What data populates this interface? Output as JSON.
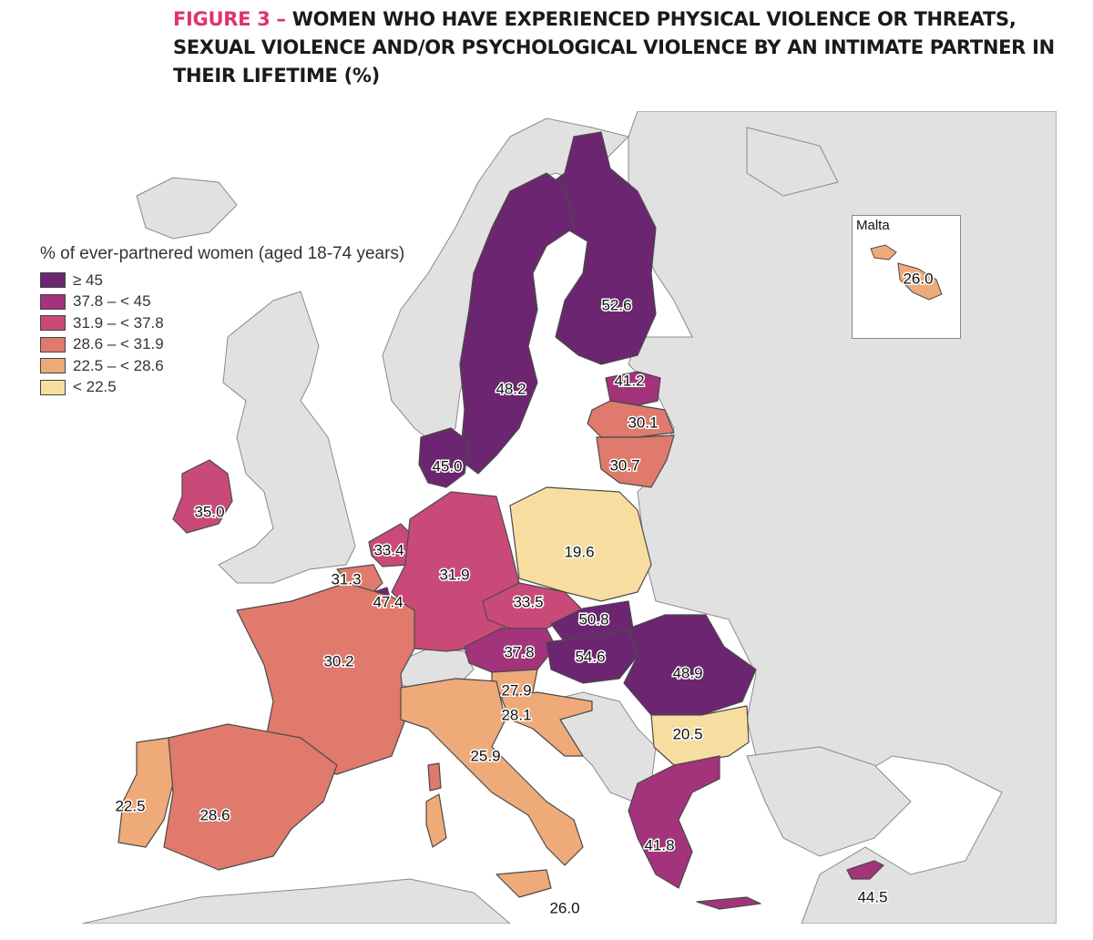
{
  "title": {
    "figure_label": "FIGURE 3 – ",
    "text": "WOMEN WHO HAVE EXPERIENCED PHYSICAL VIOLENCE OR THREATS, SEXUAL VIOLENCE AND/OR PSYCHOLOGICAL VIOLENCE BY AN INTIMATE PARTNER IN THEIR LIFETIME (%)"
  },
  "legend": {
    "title": "% of ever-partnered women (aged 18-74 years)",
    "classes": [
      {
        "label": "≥ 45",
        "color": "#6c2570"
      },
      {
        "label": "37.8 – < 45",
        "color": "#a3337a"
      },
      {
        "label": "31.9 – < 37.8",
        "color": "#c94a78"
      },
      {
        "label": "28.6 – < 31.9",
        "color": "#e07a6c"
      },
      {
        "label": "22.5 – < 28.6",
        "color": "#eeaa78"
      },
      {
        "label": "< 22.5",
        "color": "#f7dea0"
      }
    ]
  },
  "colors": {
    "sea": "#ffffff",
    "non_eu_land": "#e1e1e1",
    "border": "#4a4a4a"
  },
  "inset": {
    "title": "Malta",
    "value": "26.0"
  },
  "regions": [
    {
      "name": "Finland",
      "value": "52.6"
    },
    {
      "name": "Sweden",
      "value": "48.2"
    },
    {
      "name": "Estonia",
      "value": "41.2"
    },
    {
      "name": "Latvia",
      "value": "30.1"
    },
    {
      "name": "Lithuania",
      "value": "30.7"
    },
    {
      "name": "Denmark",
      "value": "45.0"
    },
    {
      "name": "Ireland",
      "value": "35.0"
    },
    {
      "name": "Netherlands",
      "value": "33.4"
    },
    {
      "name": "Belgium",
      "value": "31.3"
    },
    {
      "name": "Luxembourg",
      "value": "47.4"
    },
    {
      "name": "Germany",
      "value": "31.9"
    },
    {
      "name": "Poland",
      "value": "19.6"
    },
    {
      "name": "Czechia",
      "value": "33.5"
    },
    {
      "name": "Slovakia",
      "value": "50.8"
    },
    {
      "name": "Austria",
      "value": "37.8"
    },
    {
      "name": "Hungary",
      "value": "54.6"
    },
    {
      "name": "Romania",
      "value": "48.9"
    },
    {
      "name": "France",
      "value": "30.2"
    },
    {
      "name": "Slovenia",
      "value": "27.9"
    },
    {
      "name": "Croatia",
      "value": "28.1"
    },
    {
      "name": "Italy",
      "value": "25.9"
    },
    {
      "name": "Bulgaria",
      "value": "20.5"
    },
    {
      "name": "Portugal",
      "value": "22.5"
    },
    {
      "name": "Spain",
      "value": "28.6"
    },
    {
      "name": "Greece",
      "value": "41.8"
    },
    {
      "name": "Cyprus",
      "value": "44.5"
    },
    {
      "name": "Malta",
      "value": "26.0"
    }
  ]
}
